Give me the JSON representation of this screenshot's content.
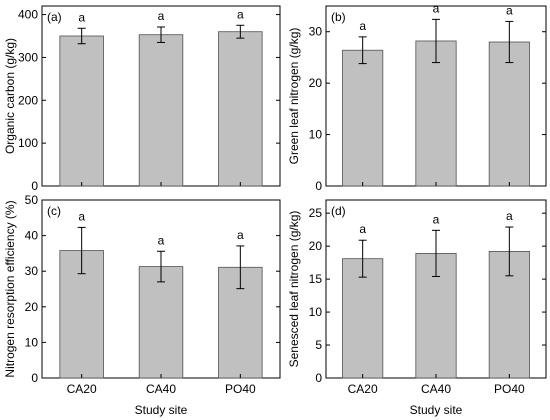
{
  "xlabel": "Study site",
  "chart_data": [
    {
      "type": "bar",
      "panel_label": "(a)",
      "categories": [
        "CA20",
        "CA40",
        "PO40"
      ],
      "values": [
        350,
        353,
        360
      ],
      "errors": [
        18,
        18,
        15
      ],
      "sig_letters": [
        "a",
        "a",
        "a"
      ],
      "ylabel": "Organic carbon (g/kg)",
      "ylim": [
        0,
        420
      ],
      "yticks": [
        0,
        100,
        200,
        300,
        400
      ]
    },
    {
      "type": "bar",
      "panel_label": "(b)",
      "categories": [
        "CA20",
        "CA40",
        "PO40"
      ],
      "values": [
        26.4,
        28.2,
        28.0
      ],
      "errors": [
        2.6,
        4.2,
        4.0
      ],
      "sig_letters": [
        "a",
        "a",
        "a"
      ],
      "ylabel": "Green leaf nitrogen (g/kg)",
      "ylim": [
        0,
        35
      ],
      "yticks": [
        0,
        10,
        20,
        30
      ]
    },
    {
      "type": "bar",
      "panel_label": "(c)",
      "categories": [
        "CA20",
        "CA40",
        "PO40"
      ],
      "values": [
        35.8,
        31.3,
        31.1
      ],
      "errors": [
        6.5,
        4.3,
        6.0
      ],
      "sig_letters": [
        "a",
        "a",
        "a"
      ],
      "ylabel": "Nitrogen resorption efficiency (%)",
      "ylim": [
        0,
        50
      ],
      "yticks": [
        0,
        10,
        20,
        30,
        40,
        50
      ]
    },
    {
      "type": "bar",
      "panel_label": "(d)",
      "categories": [
        "CA20",
        "CA40",
        "PO40"
      ],
      "values": [
        18.1,
        18.9,
        19.2
      ],
      "errors": [
        2.8,
        3.5,
        3.7
      ],
      "sig_letters": [
        "a",
        "a",
        "a"
      ],
      "ylabel": "Senesced leaf nitrogen (g/kg)",
      "ylim": [
        0,
        27
      ],
      "yticks": [
        0,
        5,
        10,
        15,
        20,
        25
      ]
    }
  ]
}
